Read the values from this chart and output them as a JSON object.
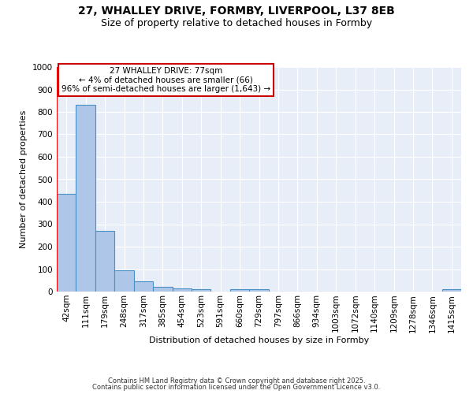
{
  "title_line1": "27, WHALLEY DRIVE, FORMBY, LIVERPOOL, L37 8EB",
  "title_line2": "Size of property relative to detached houses in Formby",
  "xlabel": "Distribution of detached houses by size in Formby",
  "ylabel": "Number of detached properties",
  "bar_labels": [
    "42sqm",
    "111sqm",
    "179sqm",
    "248sqm",
    "317sqm",
    "385sqm",
    "454sqm",
    "523sqm",
    "591sqm",
    "660sqm",
    "729sqm",
    "797sqm",
    "866sqm",
    "934sqm",
    "1003sqm",
    "1072sqm",
    "1140sqm",
    "1209sqm",
    "1278sqm",
    "1346sqm",
    "1415sqm"
  ],
  "bar_values": [
    435,
    830,
    270,
    95,
    45,
    20,
    15,
    10,
    0,
    10,
    10,
    0,
    0,
    0,
    0,
    0,
    0,
    0,
    0,
    0,
    10
  ],
  "bar_color": "#aec6e8",
  "bar_edge_color": "#4a90c4",
  "bar_linewidth": 0.8,
  "red_line_x": -0.08,
  "annotation_title": "27 WHALLEY DRIVE: 77sqm",
  "annotation_line2": "← 4% of detached houses are smaller (66)",
  "annotation_line3": "96% of semi-detached houses are larger (1,643) →",
  "annotation_box_color": "#ffffff",
  "annotation_box_edge_color": "#cc0000",
  "ylim": [
    0,
    1000
  ],
  "yticks": [
    0,
    100,
    200,
    300,
    400,
    500,
    600,
    700,
    800,
    900,
    1000
  ],
  "footer_line1": "Contains HM Land Registry data © Crown copyright and database right 2025.",
  "footer_line2": "Contains public sector information licensed under the Open Government Licence v3.0.",
  "bg_color": "#e8eef8",
  "grid_color": "#ffffff",
  "fig_bg_color": "#ffffff",
  "title_fontsize": 10,
  "subtitle_fontsize": 9,
  "ylabel_fontsize": 8,
  "xlabel_fontsize": 8,
  "tick_fontsize": 7.5,
  "footer_fontsize": 6
}
